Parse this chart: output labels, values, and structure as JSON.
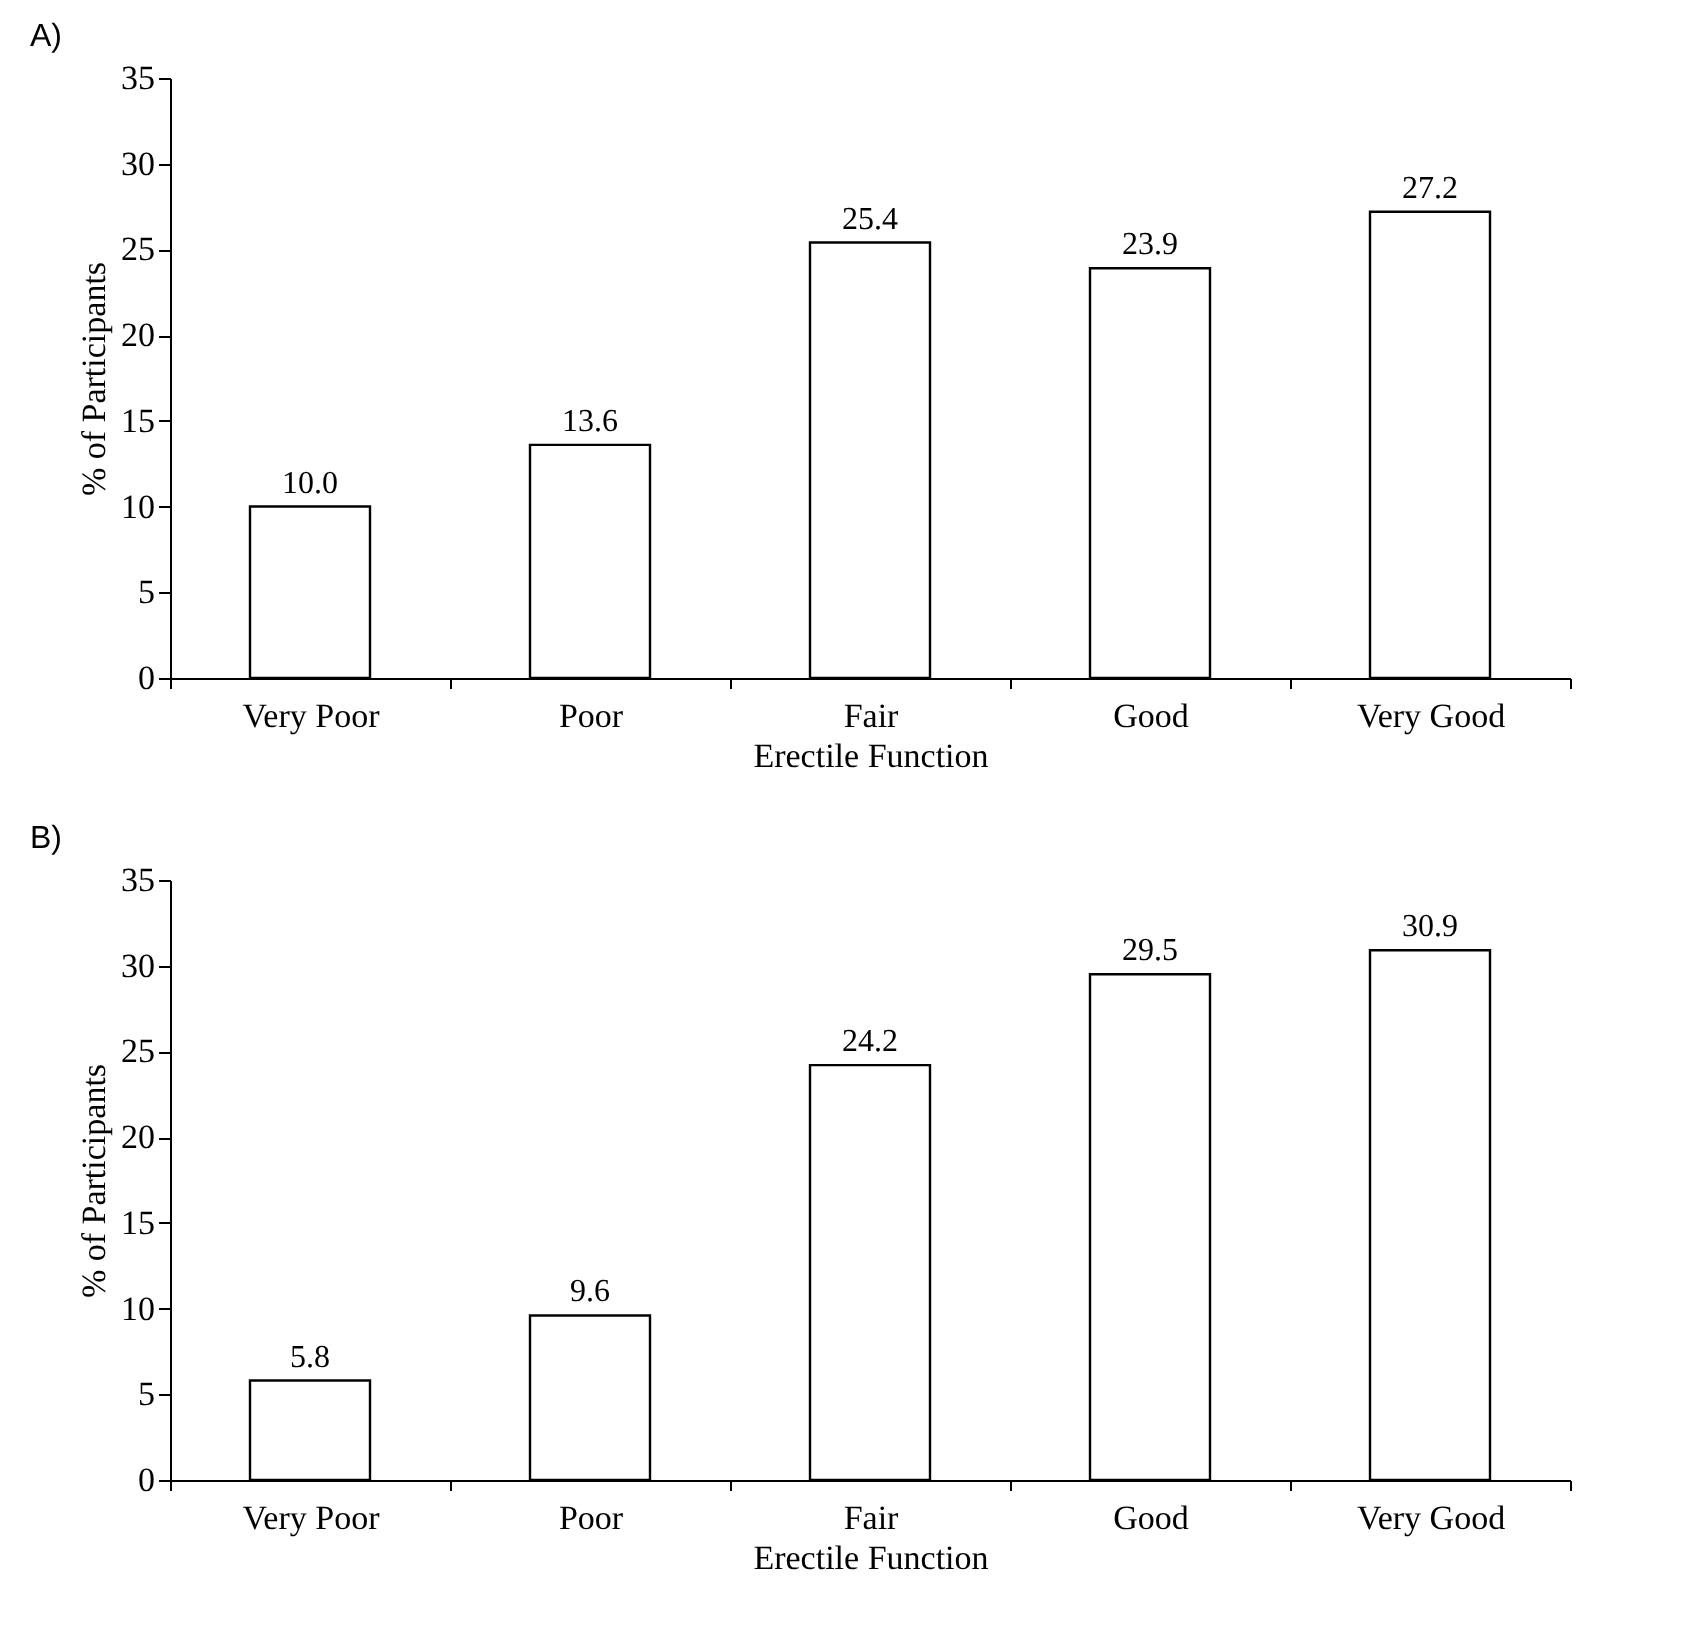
{
  "chart_data": [
    {
      "type": "bar",
      "title": "A)",
      "xlabel": "Erectile Function",
      "ylabel": "% of Participants",
      "categories": [
        "Very Poor",
        "Poor",
        "Fair",
        "Good",
        "Very Good"
      ],
      "series": [
        {
          "color": "#ffffff",
          "values": [
            10.0,
            13.6,
            25.4,
            23.9,
            27.2
          ],
          "value_labels": [
            "10.0",
            "13.6",
            "25.4",
            "23.9",
            "27.2"
          ]
        }
      ],
      "ylim": [
        0,
        35
      ],
      "yticks": [
        0,
        5,
        10,
        15,
        20,
        25,
        30,
        35
      ],
      "grid": false
    },
    {
      "type": "bar",
      "title": "B)",
      "xlabel": "Erectile Function",
      "ylabel": "% of Participants",
      "categories": [
        "Very Poor",
        "Poor",
        "Fair",
        "Good",
        "Very Good"
      ],
      "series": [
        {
          "color": "#ffffff",
          "values": [
            5.8,
            9.6,
            24.2,
            29.5,
            30.9
          ],
          "value_labels": [
            "5.8",
            "9.6",
            "24.2",
            "29.5",
            "30.9"
          ]
        }
      ],
      "ylim": [
        0,
        35
      ],
      "yticks": [
        0,
        5,
        10,
        15,
        20,
        25,
        30,
        35
      ],
      "grid": false
    }
  ]
}
